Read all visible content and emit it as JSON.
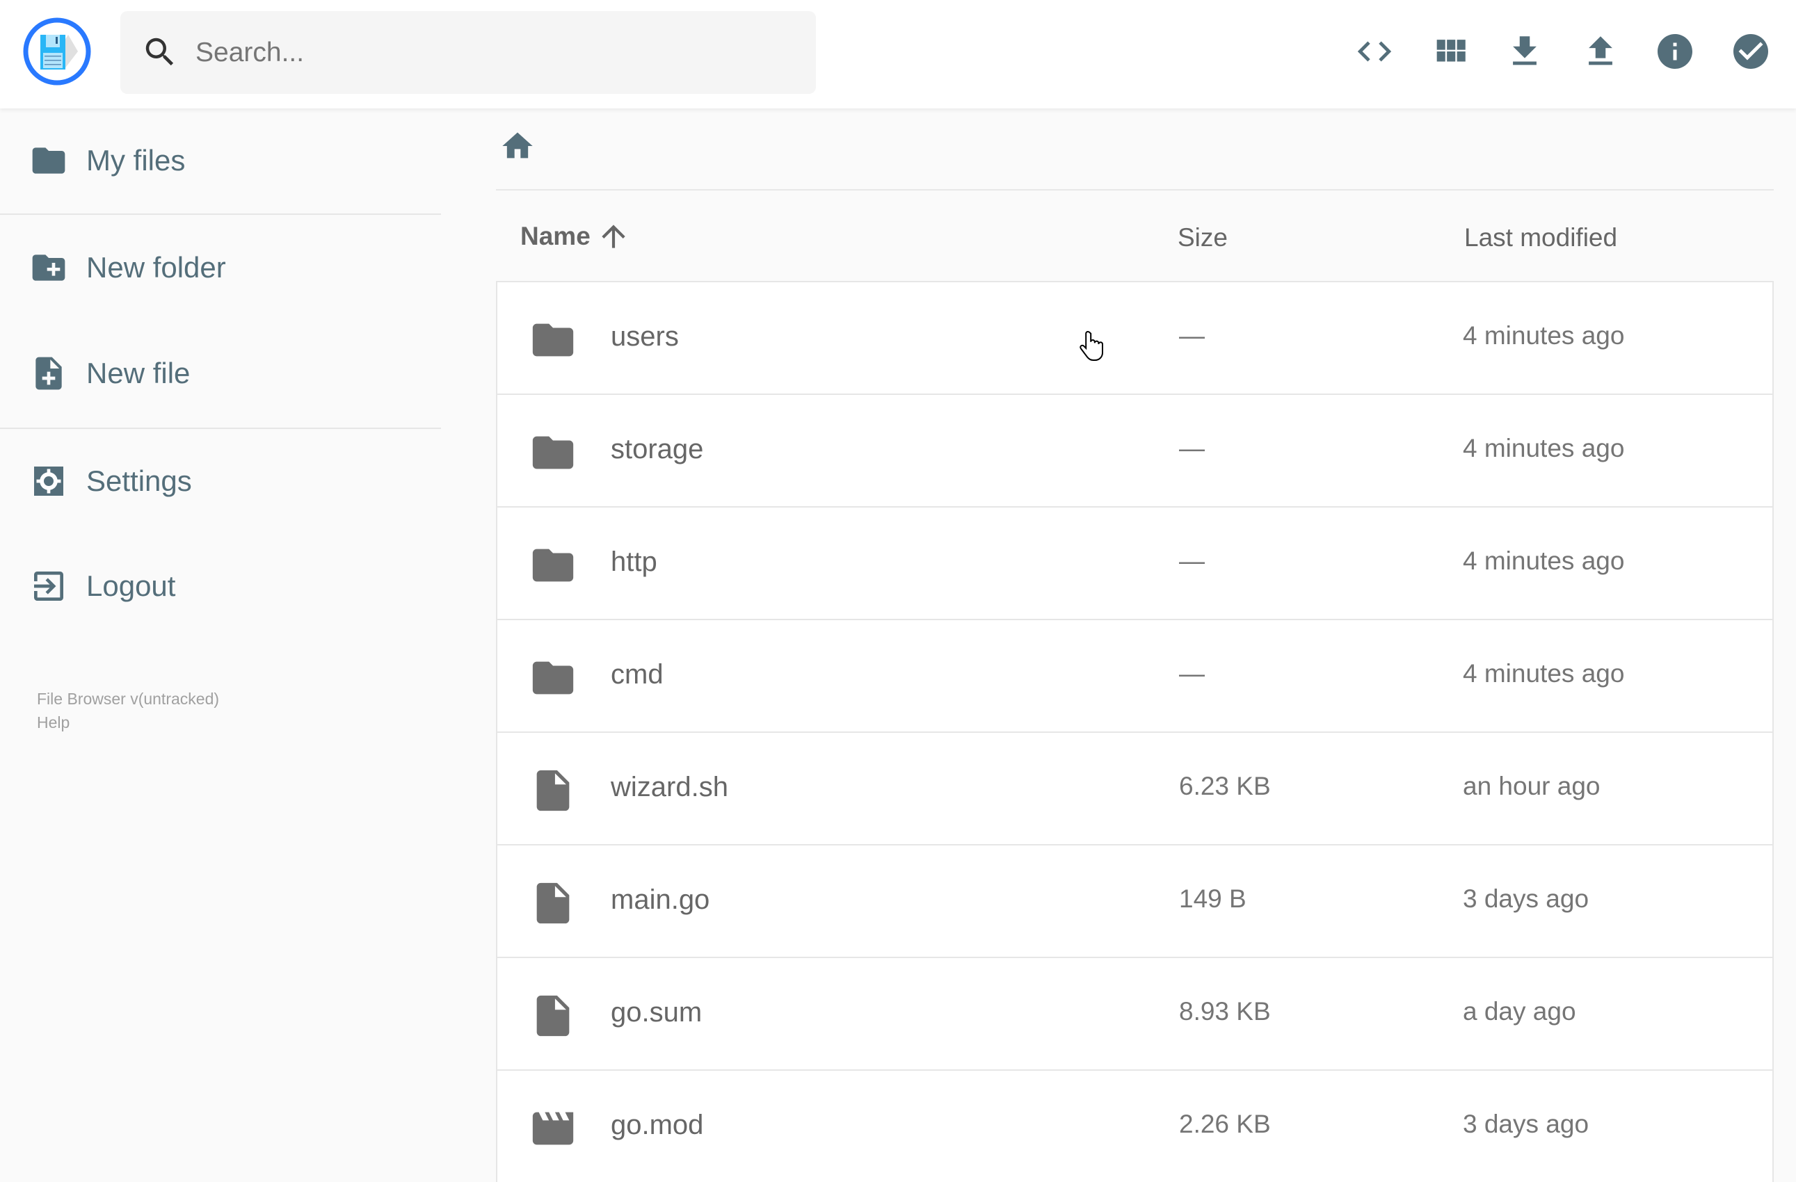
{
  "header": {
    "search_placeholder": "Search...",
    "actions": [
      {
        "name": "code-icon"
      },
      {
        "name": "grid-view-icon"
      },
      {
        "name": "download-icon"
      },
      {
        "name": "upload-icon"
      },
      {
        "name": "info-icon"
      },
      {
        "name": "check-circle-icon"
      }
    ]
  },
  "sidebar": {
    "items": [
      {
        "label": "My files",
        "icon": "folder-icon"
      },
      {
        "label": "New folder",
        "icon": "create-new-folder-icon"
      },
      {
        "label": "New file",
        "icon": "note-add-icon"
      },
      {
        "label": "Settings",
        "icon": "settings-icon"
      },
      {
        "label": "Logout",
        "icon": "exit-icon"
      }
    ],
    "footer": {
      "version": "File Browser v(untracked)",
      "help": "Help"
    }
  },
  "listing": {
    "columns": {
      "name": "Name",
      "size": "Size",
      "modified": "Last modified"
    },
    "sort": "name-ascending",
    "rows": [
      {
        "name": "users",
        "size": "—",
        "modified": "4 minutes ago",
        "type": "folder"
      },
      {
        "name": "storage",
        "size": "—",
        "modified": "4 minutes ago",
        "type": "folder"
      },
      {
        "name": "http",
        "size": "—",
        "modified": "4 minutes ago",
        "type": "folder"
      },
      {
        "name": "cmd",
        "size": "—",
        "modified": "4 minutes ago",
        "type": "folder"
      },
      {
        "name": "wizard.sh",
        "size": "6.23 KB",
        "modified": "an hour ago",
        "type": "file"
      },
      {
        "name": "main.go",
        "size": "149 B",
        "modified": "3 days ago",
        "type": "file"
      },
      {
        "name": "go.sum",
        "size": "8.93 KB",
        "modified": "a day ago",
        "type": "file"
      },
      {
        "name": "go.mod",
        "size": "2.26 KB",
        "modified": "3 days ago",
        "type": "video"
      }
    ]
  },
  "colors": {
    "accent": "#2979ff",
    "icon": "#546e7a",
    "text": "#666666"
  }
}
